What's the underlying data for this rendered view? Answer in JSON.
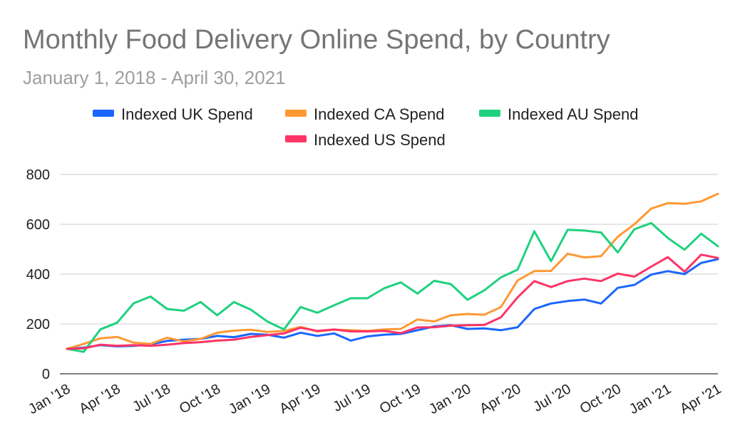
{
  "chart_data": {
    "type": "line",
    "title": "Monthly Food Delivery Online Spend, by Country",
    "subtitle": "January 1, 2018 - April 30, 2021",
    "xlabel": "",
    "ylabel": "",
    "ylim": [
      0,
      800
    ],
    "yticks": [
      "0",
      "200",
      "400",
      "600",
      "800"
    ],
    "grid": true,
    "legend_position": "top",
    "categories": [
      "Jan '18",
      "Feb '18",
      "Mar '18",
      "Apr '18",
      "May '18",
      "Jun '18",
      "Jul '18",
      "Aug '18",
      "Sep '18",
      "Oct '18",
      "Nov '18",
      "Dec '18",
      "Jan '19",
      "Feb '19",
      "Mar '19",
      "Apr '19",
      "May '19",
      "Jun '19",
      "Jul '19",
      "Aug '19",
      "Sep '19",
      "Oct '19",
      "Nov '19",
      "Dec '19",
      "Jan '20",
      "Feb '20",
      "Mar '20",
      "Apr '20",
      "May '20",
      "Jun '20",
      "Jul '20",
      "Aug '20",
      "Sep '20",
      "Oct '20",
      "Nov '20",
      "Dec '20",
      "Jan '21",
      "Feb '21",
      "Mar '21",
      "Apr '21"
    ],
    "xtick_labels": [
      {
        "index": 0,
        "label": "Jan '18"
      },
      {
        "index": 3,
        "label": "Apr '18"
      },
      {
        "index": 6,
        "label": "Jul '18"
      },
      {
        "index": 9,
        "label": "Oct '18"
      },
      {
        "index": 12,
        "label": "Jan '19"
      },
      {
        "index": 15,
        "label": "Apr '19"
      },
      {
        "index": 18,
        "label": "Jul '19"
      },
      {
        "index": 21,
        "label": "Oct '19"
      },
      {
        "index": 24,
        "label": "Jan '20"
      },
      {
        "index": 27,
        "label": "Apr '20"
      },
      {
        "index": 30,
        "label": "Jul '20"
      },
      {
        "index": 33,
        "label": "Oct '20"
      },
      {
        "index": 36,
        "label": "Jan '21"
      },
      {
        "index": 39,
        "label": "Apr '21"
      }
    ],
    "series": [
      {
        "name": "Indexed UK Spend",
        "color": "#1a66ff",
        "values": [
          100,
          105,
          115,
          110,
          112,
          118,
          132,
          137,
          140,
          152,
          147,
          160,
          157,
          145,
          165,
          152,
          162,
          133,
          150,
          157,
          160,
          175,
          190,
          195,
          180,
          182,
          175,
          187,
          260,
          282,
          292,
          298,
          282,
          345,
          357,
          398,
          412,
          400,
          445,
          460
        ]
      },
      {
        "name": "Indexed CA Spend",
        "color": "#ff9933",
        "values": [
          100,
          120,
          142,
          148,
          125,
          120,
          145,
          130,
          140,
          165,
          173,
          177,
          168,
          172,
          188,
          170,
          177,
          175,
          172,
          178,
          180,
          218,
          210,
          235,
          240,
          237,
          268,
          375,
          412,
          413,
          482,
          467,
          472,
          550,
          600,
          663,
          685,
          682,
          692,
          722
        ]
      },
      {
        "name": "Indexed AU Spend",
        "color": "#1fd17f",
        "values": [
          100,
          88,
          178,
          205,
          283,
          310,
          260,
          253,
          288,
          235,
          288,
          258,
          210,
          178,
          268,
          245,
          275,
          303,
          303,
          343,
          367,
          322,
          373,
          360,
          297,
          335,
          387,
          418,
          572,
          452,
          578,
          575,
          567,
          487,
          580,
          605,
          545,
          498,
          562,
          512
        ]
      },
      {
        "name": "Indexed US Spend",
        "color": "#ff3366",
        "values": [
          100,
          102,
          117,
          112,
          115,
          112,
          117,
          123,
          127,
          133,
          137,
          148,
          155,
          162,
          185,
          172,
          178,
          170,
          170,
          172,
          163,
          186,
          187,
          193,
          195,
          196,
          227,
          307,
          372,
          348,
          372,
          382,
          372,
          402,
          390,
          430,
          468,
          410,
          478,
          465
        ]
      }
    ]
  }
}
